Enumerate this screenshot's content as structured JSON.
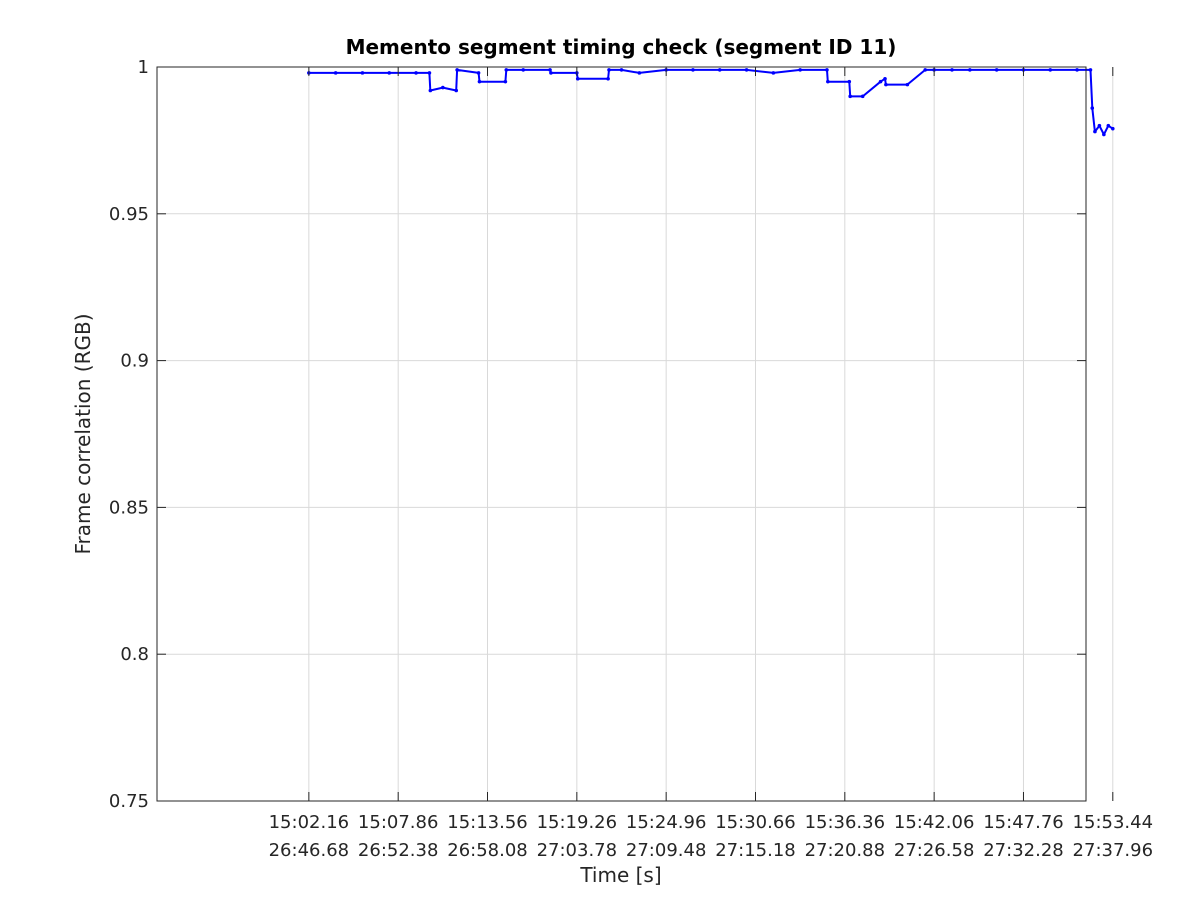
{
  "chart_data": {
    "type": "line",
    "title": "Memento segment timing check (segment ID 11)",
    "xlabel": "Time [s]",
    "ylabel": "Frame correlation (RGB)",
    "ylim": [
      0.75,
      1
    ],
    "yticks": [
      0.75,
      0.8,
      0.85,
      0.9,
      0.95,
      1
    ],
    "ytick_labels": [
      "0.75",
      "0.8",
      "0.85",
      "0.9",
      "0.95",
      "1"
    ],
    "xlim": [
      -1.7,
      8.7
    ],
    "xticks": [
      0,
      1,
      2,
      3,
      4,
      5,
      6,
      7,
      8,
      9
    ],
    "xtick_labels_row1": [
      "15:02.16",
      "15:07.86",
      "15:13.56",
      "15:19.26",
      "15:24.96",
      "15:30.66",
      "15:36.36",
      "15:42.06",
      "15:47.76",
      "15:53.44"
    ],
    "xtick_labels_row2": [
      "26:46.68",
      "26:52.38",
      "26:58.08",
      "27:03.78",
      "27:09.48",
      "27:15.18",
      "27:20.88",
      "27:26.58",
      "27:32.28",
      "27:37.96"
    ],
    "grid": true,
    "line_color": "#0000ff",
    "series": [
      {
        "x": [
          0,
          0.3,
          0.6,
          0.9,
          1.2,
          1.35,
          1.36,
          1.5,
          1.65,
          1.66,
          1.9,
          1.91,
          2.2,
          2.21,
          2.4,
          2.7,
          2.71,
          3.0,
          3.01,
          3.35,
          3.36,
          3.5,
          3.7,
          4.0,
          4.3,
          4.6,
          4.9,
          5.2,
          5.5,
          5.8,
          5.81,
          6.05,
          6.06,
          6.2,
          6.4,
          6.45,
          6.46,
          6.7,
          6.9,
          7.0,
          7.2,
          7.4,
          7.7,
          8.0,
          8.3,
          8.6,
          8.75,
          8.77,
          8.8,
          8.85,
          8.9,
          8.95,
          9.0
        ],
        "y": [
          0.998,
          0.998,
          0.998,
          0.998,
          0.998,
          0.998,
          0.992,
          0.993,
          0.992,
          0.999,
          0.998,
          0.995,
          0.995,
          0.999,
          0.999,
          0.999,
          0.998,
          0.998,
          0.996,
          0.996,
          0.999,
          0.999,
          0.998,
          0.999,
          0.999,
          0.999,
          0.999,
          0.998,
          0.999,
          0.999,
          0.995,
          0.995,
          0.99,
          0.99,
          0.995,
          0.996,
          0.994,
          0.994,
          0.999,
          0.999,
          0.999,
          0.999,
          0.999,
          0.999,
          0.999,
          0.999,
          0.999,
          0.986,
          0.978,
          0.98,
          0.977,
          0.98,
          0.979
        ]
      }
    ]
  }
}
